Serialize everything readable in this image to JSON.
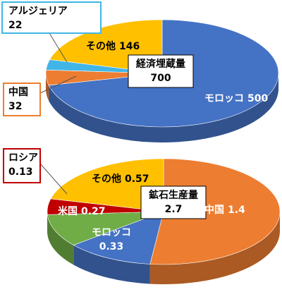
{
  "chart_data": [
    {
      "type": "pie3d",
      "title": "経済埋蔵量",
      "total": 700,
      "categories": [
        "モロッコ",
        "中国",
        "アルジェリア",
        "その他"
      ],
      "values": [
        500,
        32,
        22,
        146
      ],
      "colors": [
        "#4472c4",
        "#ed7d31",
        "#41b6e6",
        "#ffc000"
      ]
    },
    {
      "type": "pie3d",
      "title": "鉱石生産量",
      "total": 2.7,
      "categories": [
        "中国",
        "モロッコ",
        "米国",
        "ロシア",
        "その他"
      ],
      "values": [
        1.4,
        0.33,
        0.27,
        0.13,
        0.57
      ],
      "colors": [
        "#ed7d31",
        "#4472c4",
        "#70ad47",
        "#c00000",
        "#ffc000"
      ]
    }
  ]
}
